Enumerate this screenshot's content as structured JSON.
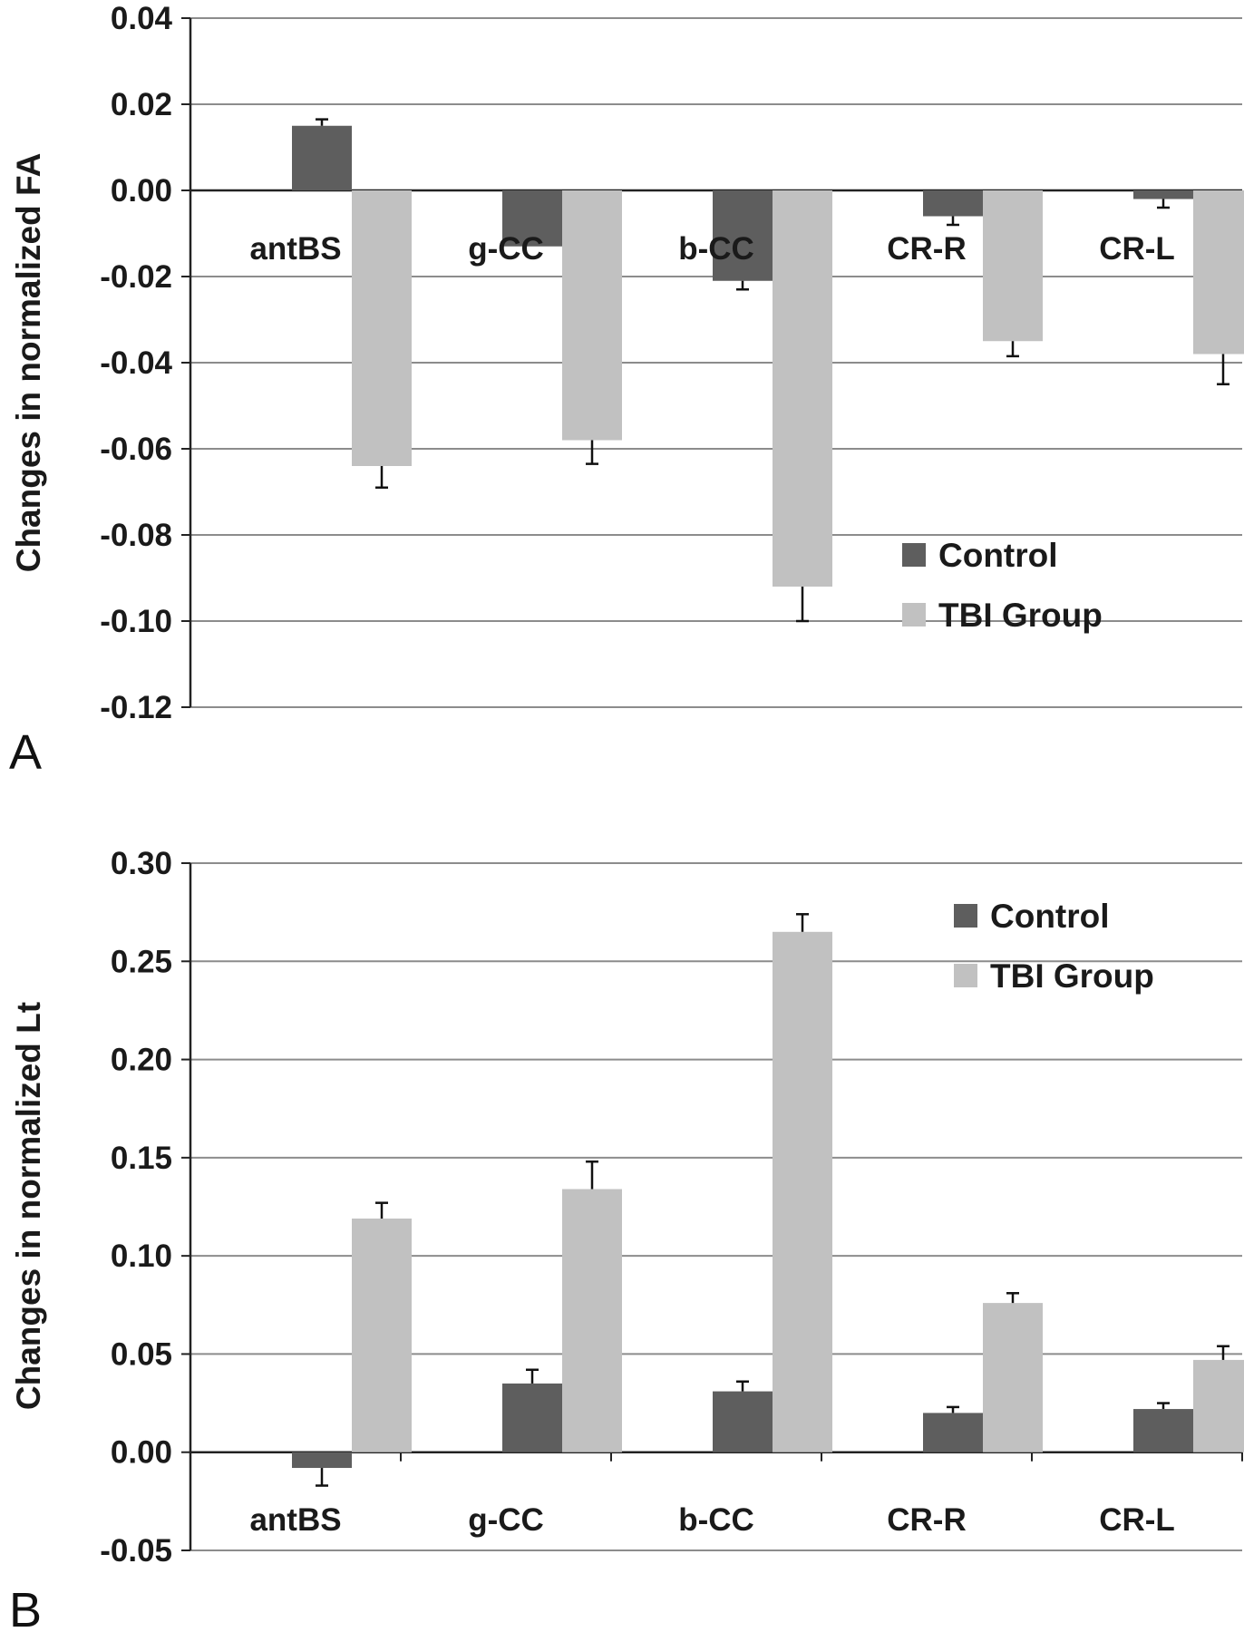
{
  "colors": {
    "control": "#5e5e5e",
    "tbi": "#c1c1c1",
    "grid": "#8c8c8c",
    "axis": "#222222"
  },
  "chart_data": [
    {
      "panel": "A",
      "type": "bar",
      "ylabel": "Changes in normalized FA",
      "ylim": [
        -0.12,
        0.04
      ],
      "yticks": [
        "0.04",
        "0.02",
        "0.00",
        "-0.02",
        "-0.04",
        "-0.06",
        "-0.08",
        "-0.10",
        "-0.12"
      ],
      "categories": [
        "antBS",
        "g-CC",
        "b-CC",
        "CR-R",
        "CR-L"
      ],
      "series": [
        {
          "name": "Control",
          "values": [
            0.015,
            -0.013,
            -0.021,
            -0.006,
            -0.002
          ],
          "errors": [
            0.0015,
            0.0,
            0.002,
            0.002,
            0.002
          ]
        },
        {
          "name": "TBI Group",
          "values": [
            -0.064,
            -0.058,
            -0.092,
            -0.035,
            -0.038
          ],
          "errors": [
            0.005,
            0.0055,
            0.008,
            0.0035,
            0.007
          ]
        }
      ],
      "legend_position": "bottom-right",
      "grid": true
    },
    {
      "panel": "B",
      "type": "bar",
      "ylabel": "Changes in normalized Lt",
      "ylim": [
        -0.05,
        0.3
      ],
      "yticks": [
        "0.30",
        "0.25",
        "0.20",
        "0.15",
        "0.10",
        "0.05",
        "0.00",
        "-0.05"
      ],
      "categories": [
        "antBS",
        "g-CC",
        "b-CC",
        "CR-R",
        "CR-L"
      ],
      "series": [
        {
          "name": "Control",
          "values": [
            -0.008,
            0.035,
            0.031,
            0.02,
            0.022
          ],
          "errors": [
            0.009,
            0.007,
            0.005,
            0.003,
            0.003
          ]
        },
        {
          "name": "TBI Group",
          "values": [
            0.119,
            0.134,
            0.265,
            0.076,
            0.047
          ],
          "errors": [
            0.008,
            0.014,
            0.009,
            0.005,
            0.007
          ]
        }
      ],
      "legend_position": "top-right",
      "grid": true
    }
  ]
}
